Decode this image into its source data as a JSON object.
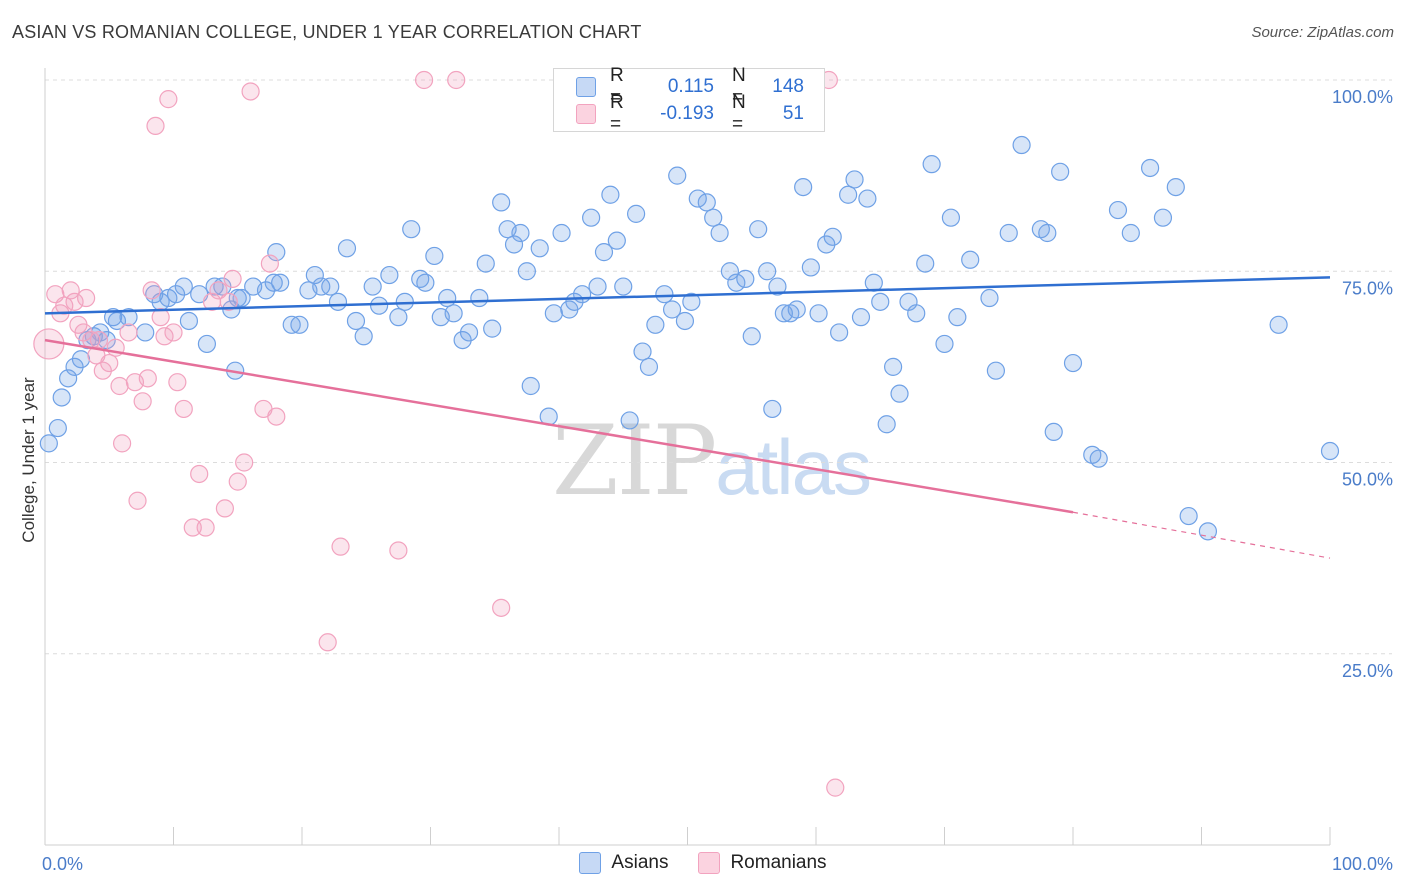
{
  "title": "ASIAN VS ROMANIAN COLLEGE, UNDER 1 YEAR CORRELATION CHART",
  "source": "Source: ZipAtlas.com",
  "watermark": {
    "zip": "ZIP",
    "atlas": "atlas"
  },
  "legend": {
    "rows": [
      {
        "r_label": "R =",
        "r_value": "0.115",
        "n_label": "N =",
        "n_value": "148",
        "color": "#6fa1e6"
      },
      {
        "r_label": "R =",
        "r_value": "-0.193",
        "n_label": "N =",
        "n_value": "51",
        "color": "#f2a3bf"
      }
    ]
  },
  "bottom_legend": [
    {
      "label": "Asians",
      "color": "#6fa1e6"
    },
    {
      "label": "Romanians",
      "color": "#f2a3bf"
    }
  ],
  "chart_data": {
    "type": "scatter",
    "title": "ASIAN VS ROMANIAN COLLEGE, UNDER 1 YEAR CORRELATION CHART",
    "xlabel": "",
    "ylabel": "College, Under 1 year",
    "xlim": [
      0,
      100
    ],
    "ylim": [
      0,
      100
    ],
    "x_tick_labels": [
      "0.0%",
      "100.0%"
    ],
    "y_tick_labels": [
      "100.0%",
      "75.0%",
      "50.0%",
      "25.0%"
    ],
    "y_ticks": [
      100,
      75,
      50,
      25
    ],
    "grid": true,
    "legend_position": "top-center",
    "series": [
      {
        "name": "Asians",
        "color": "#6fa1e6",
        "trend": {
          "x0": 0,
          "y0": 69.5,
          "x1": 100,
          "y1": 74.2
        },
        "points": [
          [
            0.3,
            52.5
          ],
          [
            1.0,
            54.5
          ],
          [
            1.3,
            58.5
          ],
          [
            1.8,
            61
          ],
          [
            2.3,
            62.5
          ],
          [
            2.8,
            63.5
          ],
          [
            3.3,
            66
          ],
          [
            3.8,
            66.5
          ],
          [
            4.3,
            67
          ],
          [
            4.8,
            66
          ],
          [
            5.3,
            69
          ],
          [
            5.6,
            68.5
          ],
          [
            6.5,
            69
          ],
          [
            7.8,
            67
          ],
          [
            8.5,
            72
          ],
          [
            9.0,
            71
          ],
          [
            9.6,
            71.5
          ],
          [
            10.2,
            72
          ],
          [
            10.8,
            73
          ],
          [
            11.2,
            68.5
          ],
          [
            12.0,
            72
          ],
          [
            12.6,
            65.5
          ],
          [
            13.2,
            73
          ],
          [
            13.8,
            73
          ],
          [
            14.5,
            70
          ],
          [
            15.0,
            71.5
          ],
          [
            14.8,
            62
          ],
          [
            15.3,
            71.5
          ],
          [
            16.2,
            73
          ],
          [
            17.2,
            72.5
          ],
          [
            17.8,
            73.5
          ],
          [
            18.0,
            77.5
          ],
          [
            18.3,
            73.5
          ],
          [
            19.2,
            68
          ],
          [
            19.8,
            68
          ],
          [
            20.5,
            72.5
          ],
          [
            21.0,
            74.5
          ],
          [
            21.5,
            73
          ],
          [
            22.2,
            73
          ],
          [
            22.8,
            71
          ],
          [
            23.5,
            78
          ],
          [
            24.2,
            68.5
          ],
          [
            24.8,
            66.5
          ],
          [
            25.5,
            73
          ],
          [
            26.0,
            70.5
          ],
          [
            26.8,
            74.5
          ],
          [
            27.5,
            69
          ],
          [
            28.0,
            71
          ],
          [
            28.5,
            80.5
          ],
          [
            29.2,
            74
          ],
          [
            29.6,
            73.5
          ],
          [
            30.3,
            77
          ],
          [
            30.8,
            69
          ],
          [
            31.3,
            71.5
          ],
          [
            31.8,
            69.5
          ],
          [
            32.5,
            66
          ],
          [
            33.0,
            67
          ],
          [
            33.8,
            71.5
          ],
          [
            34.3,
            76
          ],
          [
            34.8,
            67.5
          ],
          [
            35.5,
            84
          ],
          [
            36.0,
            80.5
          ],
          [
            36.5,
            78.5
          ],
          [
            37.0,
            80
          ],
          [
            37.5,
            75
          ],
          [
            37.8,
            60
          ],
          [
            38.5,
            78
          ],
          [
            39.2,
            56
          ],
          [
            39.6,
            69.5
          ],
          [
            40.2,
            80
          ],
          [
            40.8,
            70
          ],
          [
            41.2,
            71
          ],
          [
            41.8,
            72
          ],
          [
            42.5,
            82
          ],
          [
            43.0,
            73
          ],
          [
            43.5,
            77.5
          ],
          [
            44.0,
            85
          ],
          [
            44.5,
            79
          ],
          [
            45.0,
            73
          ],
          [
            45.5,
            55.5
          ],
          [
            46.0,
            82.5
          ],
          [
            46.5,
            64.5
          ],
          [
            47.0,
            62.5
          ],
          [
            47.5,
            68
          ],
          [
            48.2,
            72
          ],
          [
            48.8,
            70
          ],
          [
            49.2,
            87.5
          ],
          [
            49.8,
            68.5
          ],
          [
            50.3,
            71
          ],
          [
            50.8,
            84.5
          ],
          [
            51.5,
            84
          ],
          [
            52.0,
            82
          ],
          [
            52.5,
            80
          ],
          [
            53.3,
            75
          ],
          [
            53.8,
            73.5
          ],
          [
            54.5,
            74
          ],
          [
            55.0,
            66.5
          ],
          [
            55.5,
            80.5
          ],
          [
            56.2,
            75
          ],
          [
            56.6,
            57
          ],
          [
            57.0,
            73
          ],
          [
            57.5,
            69.5
          ],
          [
            58.0,
            69.5
          ],
          [
            58.5,
            70
          ],
          [
            59.0,
            86
          ],
          [
            59.6,
            75.5
          ],
          [
            60.2,
            69.5
          ],
          [
            60.8,
            78.5
          ],
          [
            61.3,
            79.5
          ],
          [
            61.8,
            67
          ],
          [
            62.5,
            85
          ],
          [
            63.0,
            87
          ],
          [
            63.5,
            69
          ],
          [
            64.0,
            84.5
          ],
          [
            64.5,
            73.5
          ],
          [
            65.0,
            71
          ],
          [
            65.5,
            55
          ],
          [
            66.0,
            62.5
          ],
          [
            66.5,
            59
          ],
          [
            67.2,
            71
          ],
          [
            67.8,
            69.5
          ],
          [
            68.5,
            76
          ],
          [
            69.0,
            89
          ],
          [
            70.0,
            65.5
          ],
          [
            70.5,
            82
          ],
          [
            71.0,
            69
          ],
          [
            72.0,
            76.5
          ],
          [
            73.5,
            71.5
          ],
          [
            74.0,
            62
          ],
          [
            75.0,
            80
          ],
          [
            76.0,
            91.5
          ],
          [
            77.5,
            80.5
          ],
          [
            78.0,
            80
          ],
          [
            78.5,
            54
          ],
          [
            79.0,
            88
          ],
          [
            80.0,
            63
          ],
          [
            81.5,
            51
          ],
          [
            82.0,
            50.5
          ],
          [
            83.5,
            83
          ],
          [
            84.5,
            80
          ],
          [
            86.0,
            88.5
          ],
          [
            87.0,
            82
          ],
          [
            88.0,
            86
          ],
          [
            89.0,
            43
          ],
          [
            90.5,
            41
          ],
          [
            96.0,
            68
          ],
          [
            100.0,
            51.5
          ]
        ]
      },
      {
        "name": "Romanians",
        "color": "#f2a3bf",
        "trend": {
          "x0": 0,
          "y0": 66,
          "x1": 80,
          "y1": 43.5,
          "dash_to_x": 100,
          "dash_to_y": 37.5
        },
        "points": [
          [
            0.3,
            65.5
          ],
          [
            0.8,
            72
          ],
          [
            1.2,
            69.5
          ],
          [
            1.5,
            70.5
          ],
          [
            2.0,
            72.5
          ],
          [
            2.3,
            71
          ],
          [
            2.6,
            68
          ],
          [
            3.0,
            67
          ],
          [
            3.2,
            71.5
          ],
          [
            3.6,
            66
          ],
          [
            4.0,
            64
          ],
          [
            4.2,
            66
          ],
          [
            4.5,
            62
          ],
          [
            5.0,
            63
          ],
          [
            5.5,
            65
          ],
          [
            5.8,
            60
          ],
          [
            6.0,
            52.5
          ],
          [
            6.5,
            67
          ],
          [
            7.0,
            60.5
          ],
          [
            7.2,
            45
          ],
          [
            7.6,
            58
          ],
          [
            8.0,
            61
          ],
          [
            8.3,
            72.5
          ],
          [
            8.6,
            94
          ],
          [
            9.0,
            69
          ],
          [
            9.3,
            66.5
          ],
          [
            9.6,
            97.5
          ],
          [
            10.0,
            67
          ],
          [
            10.3,
            60.5
          ],
          [
            10.8,
            57
          ],
          [
            11.5,
            41.5
          ],
          [
            12.0,
            48.5
          ],
          [
            12.5,
            41.5
          ],
          [
            13.0,
            71
          ],
          [
            13.5,
            72.5
          ],
          [
            14.0,
            44
          ],
          [
            14.3,
            71
          ],
          [
            14.6,
            74
          ],
          [
            15.0,
            47.5
          ],
          [
            15.5,
            50
          ],
          [
            16.0,
            98.5
          ],
          [
            17.0,
            57
          ],
          [
            17.5,
            76
          ],
          [
            18.0,
            56
          ],
          [
            22.0,
            26.5
          ],
          [
            23.0,
            39
          ],
          [
            27.5,
            38.5
          ],
          [
            29.5,
            100
          ],
          [
            32.0,
            100
          ],
          [
            35.5,
            31
          ],
          [
            61.0,
            100
          ],
          [
            61.5,
            7.5
          ]
        ]
      }
    ]
  }
}
